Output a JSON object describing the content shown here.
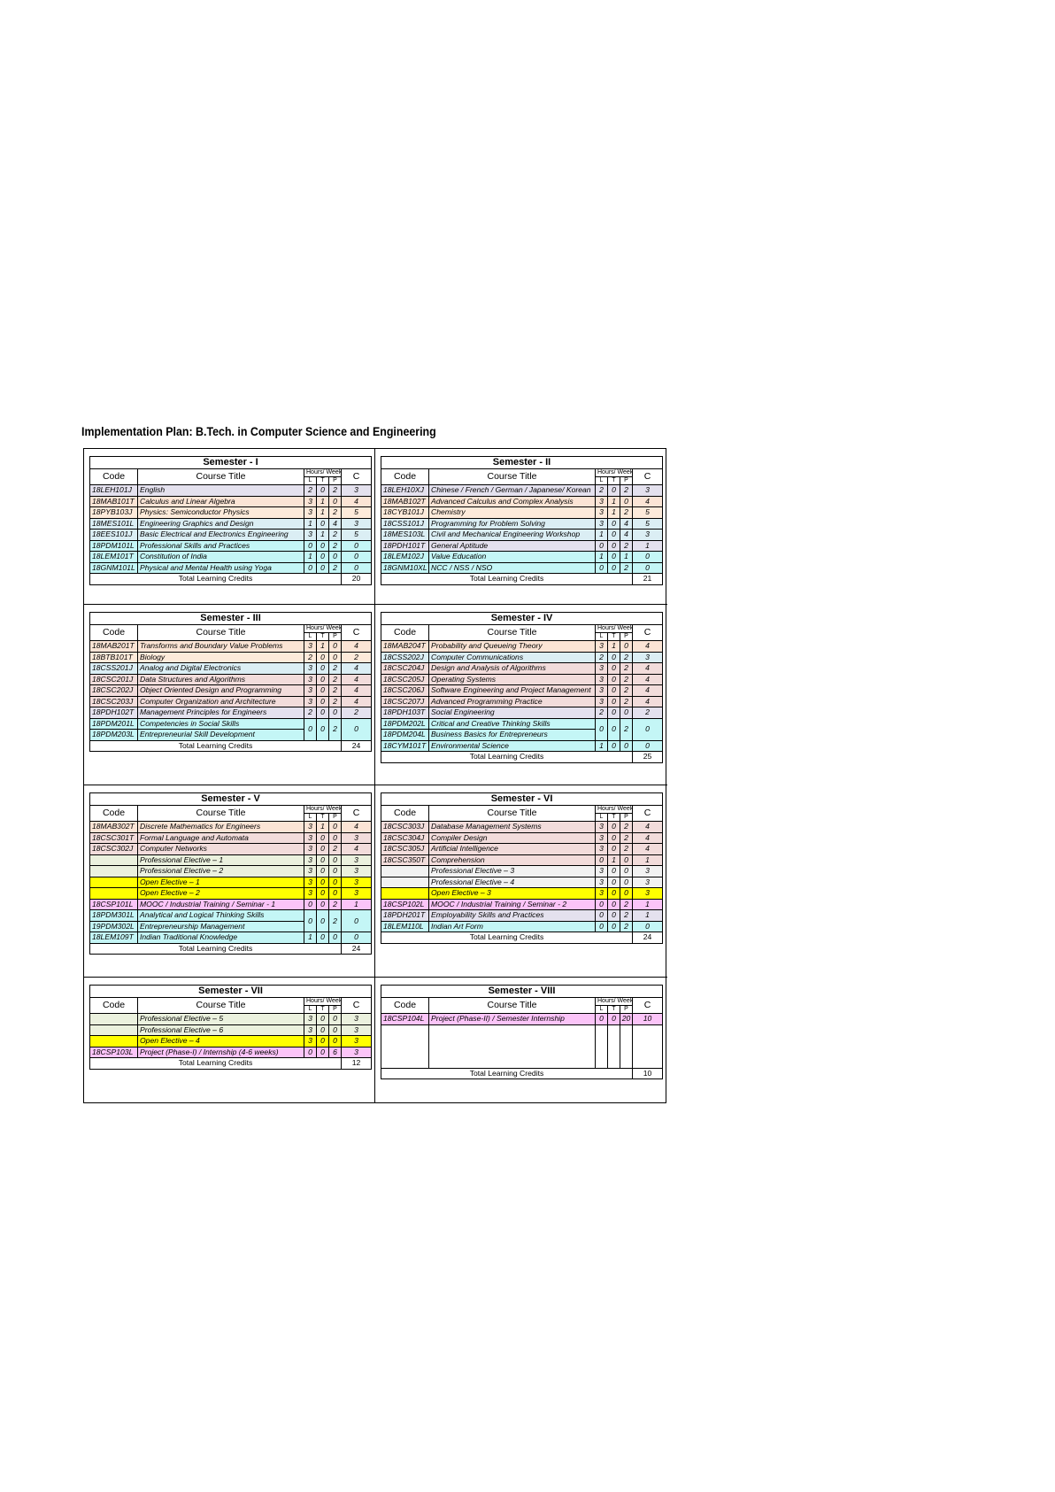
{
  "header": {
    "title": "Implementation Plan: B.Tech. in Computer Science and Engineering"
  },
  "columns": {
    "code": "Code",
    "title": "Course Title",
    "hours": "Hours/ Week",
    "l": "L",
    "t": "T",
    "p": "P",
    "c": "C",
    "total": "Total Learning Credits"
  },
  "semesters": [
    {
      "title": "Semester - I",
      "rows": [
        {
          "code": "18LEH101J",
          "title": "English",
          "l": 2,
          "t": 0,
          "p": 2,
          "c": 3,
          "color": "#e4e1ee"
        },
        {
          "code": "18MAB101T",
          "title": "Calculus and Linear Algebra",
          "l": 3,
          "t": 1,
          "p": 0,
          "c": 4,
          "color": "#fbe4d5"
        },
        {
          "code": "18PYB103J",
          "title": "Physics: Semiconductor Physics",
          "l": 3,
          "t": 1,
          "p": 2,
          "c": 5,
          "color": "#fdeada"
        },
        {
          "code": "18MES101L",
          "title": "Engineering Graphics and Design",
          "l": 1,
          "t": 0,
          "p": 4,
          "c": 3,
          "color": "#dbeef4"
        },
        {
          "code": "18EES101J",
          "title": "Basic Electrical and Electronics Engineering",
          "l": 3,
          "t": 1,
          "p": 2,
          "c": 5,
          "color": "#dbeef4"
        },
        {
          "code": "18PDM101L",
          "title": "Professional Skills and Practices",
          "l": 0,
          "t": 0,
          "p": 2,
          "c": 0,
          "color": "#c4f6f6"
        },
        {
          "code": "18LEM101T",
          "title": "Constitution of India",
          "l": 1,
          "t": 0,
          "p": 0,
          "c": 0,
          "color": "#c4f6f6"
        },
        {
          "code": "18GNM101L",
          "title": "Physical and Mental Health using Yoga",
          "l": 0,
          "t": 0,
          "p": 2,
          "c": 0,
          "color": "#c4f6f6"
        }
      ],
      "total": 20
    },
    {
      "title": "Semester - II",
      "rows": [
        {
          "code": "18LEH10XJ",
          "title": "Chinese / French / German / Japanese/ Korean",
          "l": 2,
          "t": 0,
          "p": 2,
          "c": 3,
          "color": "#e4e1ee"
        },
        {
          "code": "18MAB102T",
          "title": "Advanced Calculus and Complex Analysis",
          "l": 3,
          "t": 1,
          "p": 0,
          "c": 4,
          "color": "#fbe4d5"
        },
        {
          "code": "18CYB101J",
          "title": "Chemistry",
          "l": 3,
          "t": 1,
          "p": 2,
          "c": 5,
          "color": "#fdeada"
        },
        {
          "code": "18CSS101J",
          "title": "Programming for Problem Solving",
          "l": 3,
          "t": 0,
          "p": 4,
          "c": 5,
          "color": "#dbeef4"
        },
        {
          "code": "18MES103L",
          "title": "Civil and Mechanical Engineering Workshop",
          "l": 1,
          "t": 0,
          "p": 4,
          "c": 3,
          "color": "#dbeef4"
        },
        {
          "code": "18PDH101T",
          "title": "General Aptitude",
          "l": 0,
          "t": 0,
          "p": 2,
          "c": 1,
          "color": "#e4e1ee"
        },
        {
          "code": "18LEM102J",
          "title": "Value Education",
          "l": 1,
          "t": 0,
          "p": 1,
          "c": 0,
          "color": "#c4f6f6"
        },
        {
          "code": "18GNM10XL",
          "title": "NCC / NSS / NSO",
          "l": 0,
          "t": 0,
          "p": 2,
          "c": 0,
          "color": "#c4f6f6"
        }
      ],
      "total": 21
    },
    {
      "title": "Semester - III",
      "rows": [
        {
          "code": "18MAB201T",
          "title": "Transforms and Boundary Value Problems",
          "l": 3,
          "t": 1,
          "p": 0,
          "c": 4,
          "color": "#fbe4d5"
        },
        {
          "code": "18BTB101T",
          "title": "Biology",
          "l": 2,
          "t": 0,
          "p": 0,
          "c": 2,
          "color": "#fdeada"
        },
        {
          "code": "18CSS201J",
          "title": "Analog and Digital Electronics",
          "l": 3,
          "t": 0,
          "p": 2,
          "c": 4,
          "color": "#dbeef4"
        },
        {
          "code": "18CSC201J",
          "title": "Data Structures and Algorithms",
          "l": 3,
          "t": 0,
          "p": 2,
          "c": 4,
          "color": "#f2dcdb"
        },
        {
          "code": "18CSC202J",
          "title": "Object Oriented Design and Programming",
          "l": 3,
          "t": 0,
          "p": 2,
          "c": 4,
          "color": "#f2dcdb"
        },
        {
          "code": "18CSC203J",
          "title": "Computer Organization and Architecture",
          "l": 3,
          "t": 0,
          "p": 2,
          "c": 4,
          "color": "#f2dcdb"
        },
        {
          "code": "18PDH102T",
          "title": "Management Principles for Engineers",
          "l": 2,
          "t": 0,
          "p": 0,
          "c": 2,
          "color": "#e4e1ee"
        },
        {
          "code": [
            "18PDM201L",
            "18PDM203L"
          ],
          "title": [
            "Competencies in Social Skills",
            "Entrepreneurial Skill Development"
          ],
          "l": 0,
          "t": 0,
          "p": 2,
          "c": 0,
          "color": "#c4f6f6"
        }
      ],
      "total": 24
    },
    {
      "title": "Semester - IV",
      "rows": [
        {
          "code": "18MAB204T",
          "title": "Probability and Queueing Theory",
          "l": 3,
          "t": 1,
          "p": 0,
          "c": 4,
          "color": "#fbe4d5"
        },
        {
          "code": "18CSS202J",
          "title": "Computer Communications",
          "l": 2,
          "t": 0,
          "p": 2,
          "c": 3,
          "color": "#dbeef4"
        },
        {
          "code": "18CSC204J",
          "title": "Design and Analysis of Algorithms",
          "l": 3,
          "t": 0,
          "p": 2,
          "c": 4,
          "color": "#f2dcdb"
        },
        {
          "code": "18CSC205J",
          "title": "Operating Systems",
          "l": 3,
          "t": 0,
          "p": 2,
          "c": 4,
          "color": "#f2dcdb"
        },
        {
          "code": "18CSC206J",
          "title": "Software Engineering and Project Management",
          "l": 3,
          "t": 0,
          "p": 2,
          "c": 4,
          "color": "#f2dcdb"
        },
        {
          "code": "18CSC207J",
          "title": "Advanced Programming Practice",
          "l": 3,
          "t": 0,
          "p": 2,
          "c": 4,
          "color": "#f2dcdb"
        },
        {
          "code": "18PDH103T",
          "title": "Social Engineering",
          "l": 2,
          "t": 0,
          "p": 0,
          "c": 2,
          "color": "#e4e1ee"
        },
        {
          "code": [
            "18PDM202L",
            "18PDM204L"
          ],
          "title": [
            "Critical and Creative Thinking Skills",
            "Business Basics for Entrepreneurs"
          ],
          "l": 0,
          "t": 0,
          "p": 2,
          "c": 0,
          "color": "#c4f6f6"
        },
        {
          "code": "18CYM101T",
          "title": "Environmental Science",
          "l": 1,
          "t": 0,
          "p": 0,
          "c": 0,
          "color": "#c4f6f6"
        }
      ],
      "total": 25
    },
    {
      "title": "Semester - V",
      "rows": [
        {
          "code": "18MAB302T",
          "title": "Discrete Mathematics for Engineers",
          "l": 3,
          "t": 1,
          "p": 0,
          "c": 4,
          "color": "#fbe4d5"
        },
        {
          "code": "18CSC301T",
          "title": "Formal Language and Automata",
          "l": 3,
          "t": 0,
          "p": 0,
          "c": 3,
          "color": "#f2dcdb"
        },
        {
          "code": "18CSC302J",
          "title": "Computer Networks",
          "l": 3,
          "t": 0,
          "p": 2,
          "c": 4,
          "color": "#f2dcdb"
        },
        {
          "code": null,
          "title": "Professional Elective – 1",
          "l": 3,
          "t": 0,
          "p": 0,
          "c": 3,
          "color": "#ebf1de"
        },
        {
          "code": null,
          "title": "Professional Elective – 2",
          "l": 3,
          "t": 0,
          "p": 0,
          "c": 3,
          "color": "#ebf1de"
        },
        {
          "code": null,
          "title": "Open Elective – 1",
          "l": 3,
          "t": 0,
          "p": 0,
          "c": 3,
          "color": "#ffff00"
        },
        {
          "code": null,
          "title": "Open Elective – 2",
          "l": 3,
          "t": 0,
          "p": 0,
          "c": 3,
          "color": "#ffff00"
        },
        {
          "code": "18CSP101L",
          "title": "MOOC / Industrial Training / Seminar - 1",
          "l": 0,
          "t": 0,
          "p": 2,
          "c": 1,
          "color": "#fbc4f8"
        },
        {
          "code": [
            "18PDM301L",
            "19PDM302L"
          ],
          "title": [
            "Analytical and Logical Thinking Skills",
            "Entrepreneurship Management"
          ],
          "l": 0,
          "t": 0,
          "p": 2,
          "c": 0,
          "color": "#c4f6f6"
        },
        {
          "code": "18LEM109T",
          "title": "Indian Traditional Knowledge",
          "l": 1,
          "t": 0,
          "p": 0,
          "c": 0,
          "color": "#c4f6f6"
        }
      ],
      "total": 24
    },
    {
      "title": "Semester - VI",
      "rows": [
        {
          "code": "18CSC303J",
          "title": "Database Management Systems",
          "l": 3,
          "t": 0,
          "p": 2,
          "c": 4,
          "color": "#f2dcdb"
        },
        {
          "code": "18CSC304J",
          "title": "Compiler Design",
          "l": 3,
          "t": 0,
          "p": 2,
          "c": 4,
          "color": "#f2dcdb"
        },
        {
          "code": "18CSC305J",
          "title": "Artificial Intelligence",
          "l": 3,
          "t": 0,
          "p": 2,
          "c": 4,
          "color": "#f2dcdb"
        },
        {
          "code": "18CSC350T",
          "title": "Comprehension",
          "l": 0,
          "t": 1,
          "p": 0,
          "c": 1,
          "color": "#f2dcdb"
        },
        {
          "code": null,
          "title": "Professional Elective – 3",
          "l": 3,
          "t": 0,
          "p": 0,
          "c": 3,
          "color": "#f2f2f2"
        },
        {
          "code": null,
          "title": "Professional Elective – 4",
          "l": 3,
          "t": 0,
          "p": 0,
          "c": 3,
          "color": "#f2f2f2"
        },
        {
          "code": null,
          "title": "Open Elective – 3",
          "l": 3,
          "t": 0,
          "p": 0,
          "c": 3,
          "color": "#ffff00"
        },
        {
          "code": "18CSP102L",
          "title": "MOOC / Industrial Training / Seminar - 2",
          "l": 0,
          "t": 0,
          "p": 2,
          "c": 1,
          "color": "#fbc4f8"
        },
        {
          "code": "18PDH201T",
          "title": "Employability Skills and Practices",
          "l": 0,
          "t": 0,
          "p": 2,
          "c": 1,
          "color": "#e4e1ee"
        },
        {
          "code": "18LEM110L",
          "title": "Indian Art Form",
          "l": 0,
          "t": 0,
          "p": 2,
          "c": 0,
          "color": "#c4f6f6"
        }
      ],
      "total": 24
    },
    {
      "title": "Semester - VII",
      "rows": [
        {
          "code": null,
          "title": "Professional Elective – 5",
          "l": 3,
          "t": 0,
          "p": 0,
          "c": 3,
          "color": "#ebf1de"
        },
        {
          "code": null,
          "title": "Professional Elective – 6",
          "l": 3,
          "t": 0,
          "p": 0,
          "c": 3,
          "color": "#ebf1de"
        },
        {
          "code": null,
          "title": "Open Elective – 4",
          "l": 3,
          "t": 0,
          "p": 0,
          "c": 3,
          "color": "#ffff00"
        },
        {
          "code": "18CSP103L",
          "title": "Project (Phase-I) / Internship (4-6 weeks)",
          "l": 0,
          "t": 0,
          "p": 6,
          "c": 3,
          "color": "#fbc4f8"
        }
      ],
      "total": 12
    },
    {
      "title": "Semester - VIII",
      "rows": [
        {
          "code": "18CSP104L",
          "title": "Project (Phase-II) / Semester Internship",
          "l": 0,
          "t": 0,
          "p": 20,
          "c": 10,
          "color": "#fbc4f8"
        }
      ],
      "total": 10
    }
  ]
}
